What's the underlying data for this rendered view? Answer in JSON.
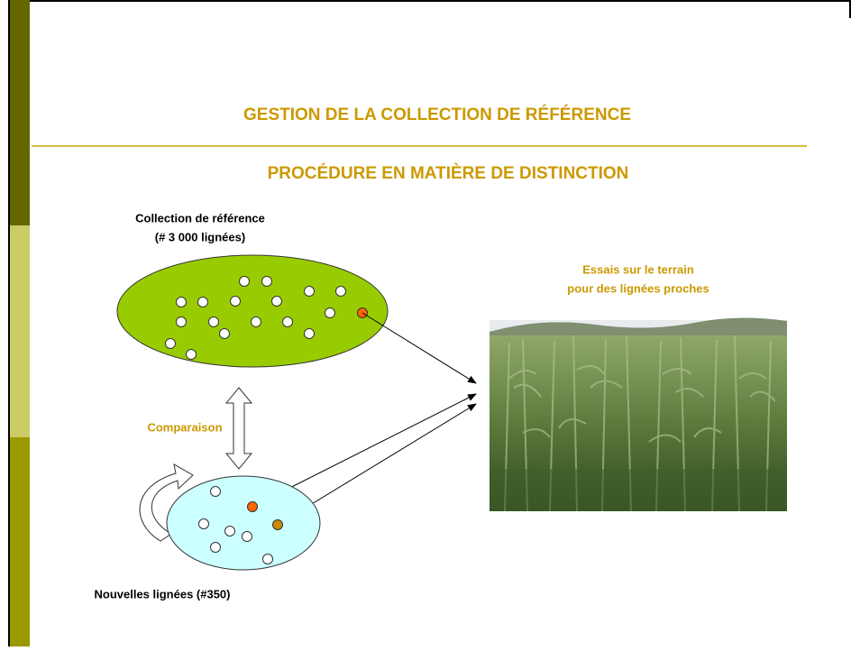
{
  "header": {
    "title": "GESTION DE LA COLLECTION DE RÉFÉRENCE",
    "subtitle": "PROCÉDURE EN MATIÈRE DE DISTINCTION"
  },
  "reference_collection": {
    "label": "Collection de référence",
    "count": "(# 3 000 lignées)"
  },
  "field_trials": {
    "line1": "Essais sur le terrain",
    "line2": "pour des lignées proches"
  },
  "comparison": "Comparaison",
  "new_lines": "Nouvelles lignées (#350)"
}
